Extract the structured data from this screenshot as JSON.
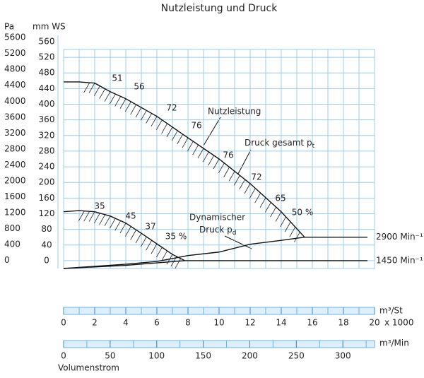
{
  "chart_data": {
    "type": "line",
    "title": "Nutzleistung und Druck",
    "y_label": "mm WS",
    "y2_label": "Pa",
    "x_label": "Volumenstrom",
    "x_unit": "m³/St",
    "x_factor": "x 1000",
    "x2_unit": "m³/Min",
    "xlim": [
      0,
      20
    ],
    "xticks": [
      0,
      2,
      4,
      6,
      8,
      10,
      12,
      14,
      16,
      18,
      20
    ],
    "x2lim": [
      0,
      334
    ],
    "x2ticks": [
      0,
      50,
      100,
      150,
      200,
      250,
      300
    ],
    "ylim": [
      -20,
      540
    ],
    "yticks": [
      0,
      40,
      80,
      120,
      160,
      200,
      240,
      280,
      320,
      360,
      400,
      440,
      480,
      520,
      560
    ],
    "y2lim": [
      -200,
      5300
    ],
    "y2ticks": [
      0,
      400,
      800,
      1200,
      1600,
      2000,
      2400,
      2800,
      3200,
      3600,
      4000,
      4400,
      4800,
      5200,
      5600
    ],
    "grid": true,
    "series": [
      {
        "name": "Druck gesamt p",
        "subscript": "t",
        "speed": "2900 Min⁻¹",
        "color": "#111111",
        "hatch": true,
        "x": [
          0,
          1,
          2,
          3,
          4,
          6,
          8,
          10,
          12,
          14,
          15.5
        ],
        "values": [
          457,
          457,
          454,
          432,
          414,
          369,
          314,
          260,
          197,
          125,
          60
        ]
      },
      {
        "name": "Dynamischer",
        "name2": "Druck p",
        "subscript": "d",
        "color": "#111111",
        "hatch": false,
        "x": [
          0,
          4,
          6,
          8,
          10,
          12,
          14,
          15.5
        ],
        "values": [
          -20,
          -9,
          -2,
          13,
          22,
          42,
          52,
          60
        ]
      },
      {
        "name": "Druck gesamt 1450",
        "speed": "1450 Min⁻¹",
        "color": "#111111",
        "hatch": true,
        "x": [
          0,
          1,
          2,
          3,
          4,
          5,
          6,
          7,
          7.8
        ],
        "values": [
          125,
          128,
          125,
          114,
          96,
          70,
          43,
          16,
          0
        ]
      },
      {
        "name": "Dynamischer Druck 1450",
        "color": "#111111",
        "hatch": false,
        "x": [
          0,
          4,
          7.8
        ],
        "values": [
          -20,
          -12,
          0
        ]
      }
    ],
    "power_label": "Nutzleistung",
    "annotations": [
      "51",
      "56",
      "72",
      "76",
      "76",
      "72",
      "65",
      "50 %",
      "35",
      "45",
      "37",
      "35 %"
    ]
  }
}
